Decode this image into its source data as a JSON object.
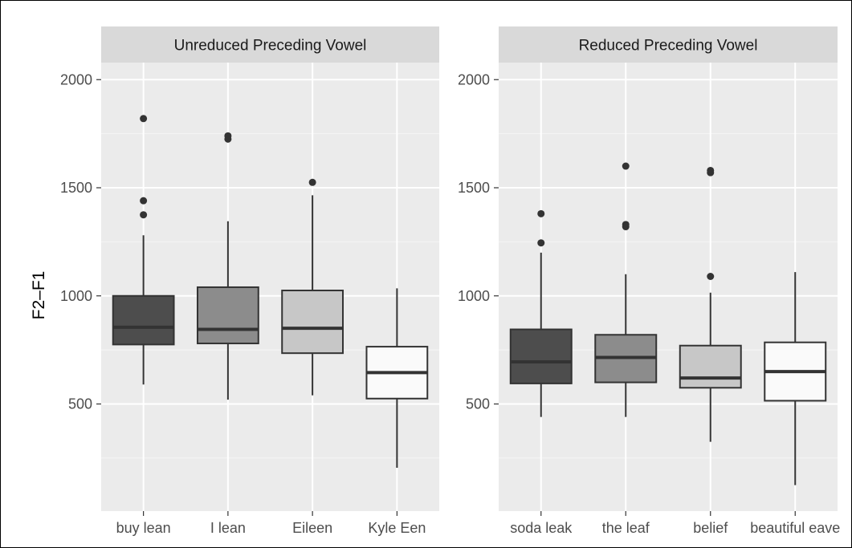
{
  "chart_data": {
    "type": "box",
    "ylabel": "F2–F1",
    "xlabel": "",
    "ylim": [
      0,
      2100
    ],
    "yticks": [
      500,
      1000,
      1500,
      2000
    ],
    "grid": true,
    "colors": {
      "panel_bg": "#ebebeb",
      "strip_bg": "#d9d9d9",
      "grid_major": "#ffffff",
      "box_outline": "#333333"
    },
    "panels": [
      {
        "title": "Unreduced Preceding Vowel",
        "boxes": [
          {
            "label": "buy lean",
            "fill": "#4d4d4d",
            "min": 590,
            "q1": 775,
            "median": 855,
            "q3": 1000,
            "max": 1280,
            "outliers": [
              1820,
              1440,
              1375
            ]
          },
          {
            "label": "I lean",
            "fill": "#8c8c8c",
            "min": 520,
            "q1": 780,
            "median": 845,
            "q3": 1040,
            "max": 1345,
            "outliers": [
              1740,
              1725
            ]
          },
          {
            "label": "Eileen",
            "fill": "#c7c7c7",
            "min": 540,
            "q1": 735,
            "median": 850,
            "q3": 1025,
            "max": 1465,
            "outliers": [
              1525
            ]
          },
          {
            "label": "Kyle Een",
            "fill": "#fafafa",
            "min": 205,
            "q1": 525,
            "median": 645,
            "q3": 765,
            "max": 1035,
            "outliers": []
          }
        ]
      },
      {
        "title": "Reduced Preceding Vowel",
        "boxes": [
          {
            "label": "soda leak",
            "fill": "#4d4d4d",
            "min": 440,
            "q1": 595,
            "median": 695,
            "q3": 845,
            "max": 1200,
            "outliers": [
              1380,
              1245
            ]
          },
          {
            "label": "the leaf",
            "fill": "#8c8c8c",
            "min": 440,
            "q1": 600,
            "median": 715,
            "q3": 820,
            "max": 1100,
            "outliers": [
              1600,
              1330,
              1320
            ]
          },
          {
            "label": "belief",
            "fill": "#c7c7c7",
            "min": 325,
            "q1": 575,
            "median": 620,
            "q3": 770,
            "max": 1015,
            "outliers": [
              1580,
              1570,
              1090
            ]
          },
          {
            "label": "beautiful eave",
            "fill": "#fafafa",
            "min": 125,
            "q1": 515,
            "median": 650,
            "q3": 785,
            "max": 1110,
            "outliers": []
          }
        ]
      }
    ]
  }
}
